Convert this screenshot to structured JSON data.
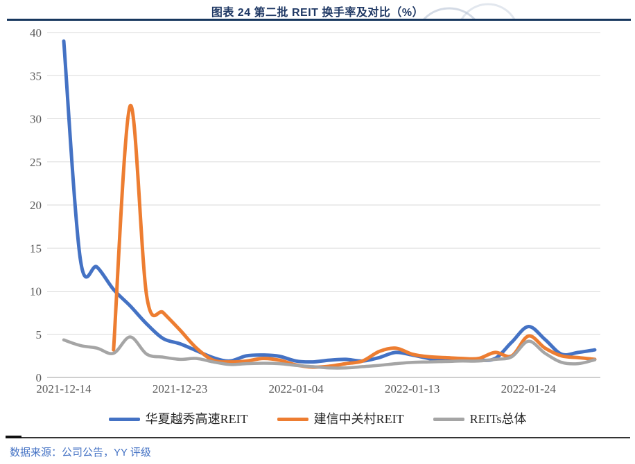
{
  "chart_data": {
    "type": "line",
    "title": "图表 24 第二批 REIT 换手率及对比（%）",
    "ylabel": "",
    "xlabel": "",
    "ylim": [
      0,
      40
    ],
    "ytick_step": 5,
    "grid": "horizontal-light",
    "legend_position": "bottom",
    "dates": [
      "2021-12-14",
      "2021-12-15",
      "2021-12-16",
      "2021-12-17",
      "2021-12-20",
      "2021-12-21",
      "2021-12-22",
      "2021-12-23",
      "2021-12-24",
      "2021-12-27",
      "2021-12-28",
      "2021-12-29",
      "2021-12-30",
      "2021-12-31",
      "2022-01-04",
      "2022-01-05",
      "2022-01-06",
      "2022-01-07",
      "2022-01-10",
      "2022-01-11",
      "2022-01-12",
      "2022-01-13",
      "2022-01-14",
      "2022-01-17",
      "2022-01-18",
      "2022-01-19",
      "2022-01-20",
      "2022-01-21",
      "2022-01-24",
      "2022-01-25",
      "2022-01-26",
      "2022-01-27",
      "2022-01-28"
    ],
    "x_tick_labels": [
      "2021-12-14",
      "2021-12-23",
      "2022-01-04",
      "2022-01-13",
      "2022-01-24"
    ],
    "x_tick_indices": [
      0,
      7,
      14,
      21,
      28
    ],
    "series": [
      {
        "name": "华夏越秀高速REIT",
        "color": "#4472C4",
        "values": [
          39.0,
          13.7,
          12.8,
          10.2,
          8.3,
          6.2,
          4.5,
          3.9,
          3.1,
          2.3,
          1.9,
          2.5,
          2.6,
          2.45,
          1.9,
          1.8,
          2.0,
          2.1,
          1.9,
          2.3,
          2.9,
          2.6,
          2.2,
          1.9,
          2.0,
          2.0,
          2.2,
          4.1,
          5.9,
          4.4,
          2.7,
          2.9,
          3.2
        ]
      },
      {
        "name": "建信中关村REIT",
        "color": "#ED7D31",
        "values": [
          null,
          null,
          null,
          3.2,
          31.5,
          9.4,
          7.5,
          5.5,
          3.4,
          2.0,
          1.8,
          1.9,
          2.2,
          2.0,
          1.45,
          1.2,
          1.3,
          1.6,
          1.9,
          3.0,
          3.4,
          2.7,
          2.4,
          2.3,
          2.2,
          2.2,
          2.9,
          2.5,
          4.8,
          3.4,
          2.5,
          2.3,
          2.1
        ]
      },
      {
        "name": "REITs总体",
        "color": "#A5A5A5",
        "values": [
          4.35,
          3.7,
          3.4,
          2.8,
          4.7,
          2.7,
          2.35,
          2.1,
          2.2,
          1.8,
          1.5,
          1.6,
          1.65,
          1.6,
          1.4,
          1.25,
          1.1,
          1.1,
          1.25,
          1.4,
          1.6,
          1.75,
          1.8,
          1.85,
          1.9,
          1.9,
          2.1,
          2.4,
          4.2,
          2.8,
          1.75,
          1.6,
          2.05
        ]
      }
    ]
  },
  "footer": {
    "source": "数据来源：公司公告，YY 评级"
  },
  "colors": {
    "title_text": "#1F3864",
    "title_rule": "#17375E",
    "source_text": "#4472C4",
    "axis_text": "#595959",
    "gridline": "#D9D9D9",
    "axis_line": "#BFBFBF",
    "watermark": "#B6C2D4"
  }
}
